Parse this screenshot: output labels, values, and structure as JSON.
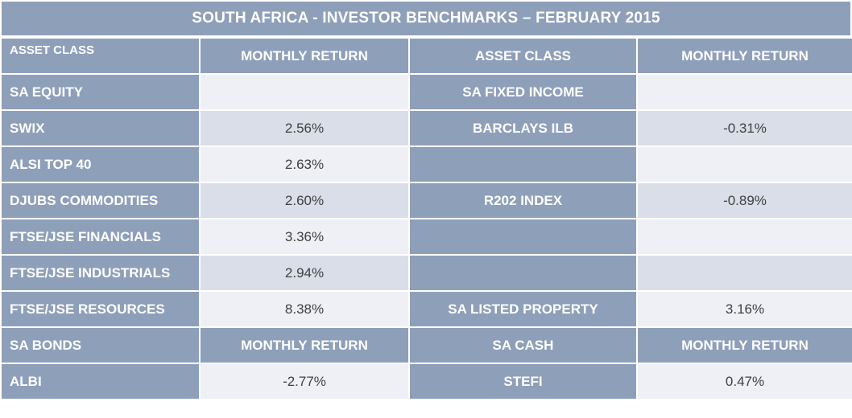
{
  "title": "SOUTH AFRICA -  INVESTOR BENCHMARKS – FEBRUARY 2015",
  "header": {
    "left_asset": "ASSET CLASS",
    "left_return": "MONTHLY RETURN",
    "right_asset": "ASSET CLASS",
    "right_return": "MONTHLY RETURN"
  },
  "rows": [
    {
      "left_label": "SA EQUITY",
      "left_value": "",
      "right_label": "SA FIXED INCOME",
      "right_value": ""
    },
    {
      "left_label": "SWIX",
      "left_value": "2.56%",
      "right_label": "BARCLAYS ILB",
      "right_value": "-0.31%"
    },
    {
      "left_label": "ALSI TOP 40",
      "left_value": "2.63%",
      "right_label": "",
      "right_value": ""
    },
    {
      "left_label": "DJUBS COMMODITIES",
      "left_value": "2.60%",
      "right_label": "R202 INDEX",
      "right_value": "-0.89%"
    },
    {
      "left_label": "FTSE/JSE FINANCIALS",
      "left_value": "3.36%",
      "right_label": "",
      "right_value": ""
    },
    {
      "left_label": "FTSE/JSE INDUSTRIALS",
      "left_value": "2.94%",
      "right_label": "",
      "right_value": ""
    },
    {
      "left_label": "FTSE/JSE RESOURCES",
      "left_value": "8.38%",
      "right_label": "SA LISTED PROPERTY",
      "right_value": "3.16%"
    }
  ],
  "subheader": {
    "left_asset": "SA BONDS",
    "left_return": "MONTHLY RETURN",
    "right_asset": "SA CASH",
    "right_return": "MONTHLY RETURN"
  },
  "bottom_row": {
    "left_label": "ALBI",
    "left_value": "-2.77%",
    "right_label": "STEFI",
    "right_value": "0.47%"
  }
}
